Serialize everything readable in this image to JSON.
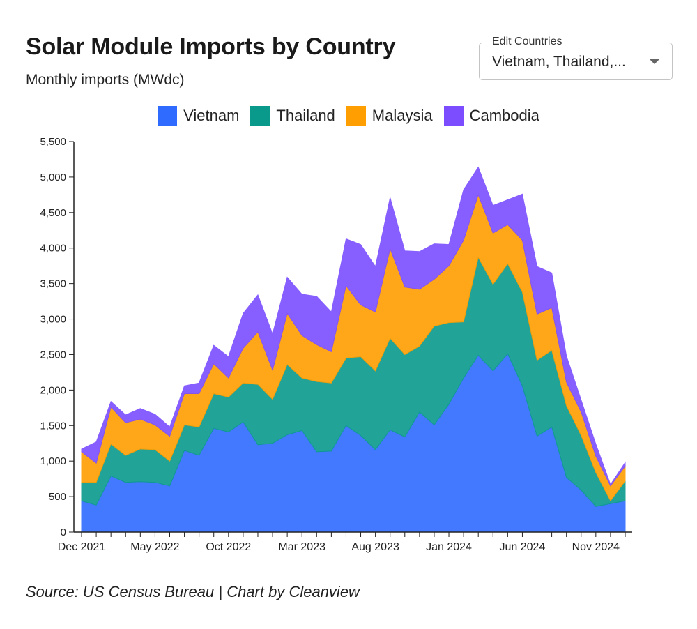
{
  "header": {
    "title": "Solar Module Imports by Country",
    "subtitle": "Monthly imports (MWdc)"
  },
  "selector": {
    "label": "Edit Countries",
    "value": "Vietnam, Thailand,..."
  },
  "legend": [
    {
      "name": "Vietnam",
      "color": "#2f6bff"
    },
    {
      "name": "Thailand",
      "color": "#0a9a8c"
    },
    {
      "name": "Malaysia",
      "color": "#ff9e00"
    },
    {
      "name": "Cambodia",
      "color": "#7b4dff"
    }
  ],
  "source": "Source: US Census Bureau | Chart by Cleanview",
  "chart_data": {
    "type": "area",
    "stacked": true,
    "x": [
      "2021-12",
      "2022-01",
      "2022-02",
      "2022-03",
      "2022-04",
      "2022-05",
      "2022-06",
      "2022-07",
      "2022-08",
      "2022-09",
      "2022-10",
      "2022-11",
      "2022-12",
      "2023-01",
      "2023-02",
      "2023-03",
      "2023-04",
      "2023-05",
      "2023-06",
      "2023-07",
      "2023-08",
      "2023-09",
      "2023-10",
      "2023-11",
      "2023-12",
      "2024-01",
      "2024-02",
      "2024-03",
      "2024-04",
      "2024-05",
      "2024-06",
      "2024-07",
      "2024-08",
      "2024-09",
      "2024-10",
      "2024-11",
      "2024-12",
      "2025-01"
    ],
    "x_tick_labels": [
      "Dec 2021",
      "May 2022",
      "Oct 2022",
      "Mar 2023",
      "Aug 2023",
      "Jan 2024",
      "Jun 2024",
      "Nov 2024"
    ],
    "x_tick_positions": [
      "2021-12",
      "2022-05",
      "2022-10",
      "2023-03",
      "2023-08",
      "2024-01",
      "2024-06",
      "2024-11"
    ],
    "ylim": [
      0,
      5500
    ],
    "y_ticks": [
      0,
      500,
      1000,
      1500,
      2000,
      2500,
      3000,
      3500,
      4000,
      4500,
      5000,
      5500
    ],
    "y_tick_labels": [
      "0",
      "500",
      "1,000",
      "1,500",
      "2,000",
      "2,500",
      "3,000",
      "3,500",
      "4,000",
      "4,500",
      "5,000",
      "5,500"
    ],
    "series": [
      {
        "name": "Vietnam",
        "color": "#2f6bff",
        "values": [
          440,
          380,
          790,
          700,
          710,
          700,
          650,
          1150,
          1080,
          1460,
          1410,
          1550,
          1230,
          1250,
          1370,
          1430,
          1130,
          1140,
          1500,
          1360,
          1160,
          1440,
          1340,
          1690,
          1510,
          1800,
          2170,
          2490,
          2270,
          2510,
          2060,
          1350,
          1480,
          770,
          590,
          360,
          400,
          440
        ]
      },
      {
        "name": "Thailand",
        "color": "#0a9a8c",
        "values": [
          260,
          320,
          450,
          380,
          460,
          460,
          350,
          360,
          400,
          490,
          490,
          550,
          850,
          620,
          990,
          740,
          990,
          960,
          950,
          1110,
          1110,
          1290,
          1160,
          930,
          1390,
          1150,
          790,
          1380,
          1220,
          1270,
          1320,
          1070,
          1080,
          1010,
          770,
          480,
          40,
          280
        ]
      },
      {
        "name": "Malaysia",
        "color": "#ff9e00",
        "values": [
          430,
          270,
          520,
          460,
          420,
          350,
          350,
          440,
          470,
          420,
          270,
          490,
          740,
          410,
          720,
          600,
          520,
          440,
          1020,
          730,
          830,
          1260,
          950,
          800,
          660,
          800,
          1150,
          880,
          720,
          550,
          730,
          650,
          600,
          330,
          330,
          230,
          210,
          210
        ]
      },
      {
        "name": "Cambodia",
        "color": "#7b4dff",
        "values": [
          40,
          300,
          80,
          110,
          150,
          150,
          130,
          110,
          150,
          260,
          300,
          490,
          520,
          510,
          510,
          580,
          680,
          560,
          660,
          850,
          640,
          720,
          510,
          530,
          500,
          300,
          710,
          390,
          390,
          350,
          650,
          670,
          490,
          370,
          170,
          170,
          20,
          50
        ]
      }
    ]
  }
}
